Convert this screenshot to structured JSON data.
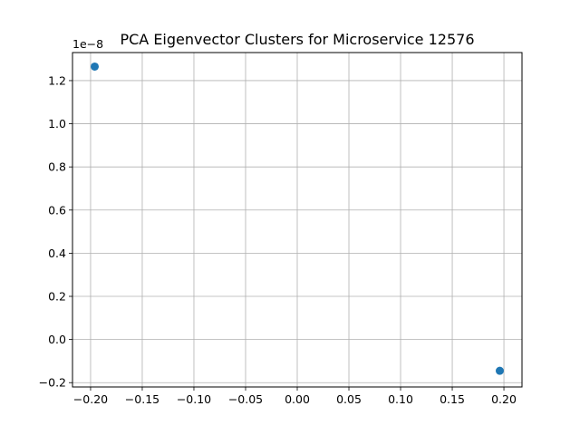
{
  "chart_data": {
    "type": "scatter",
    "title": "PCA Eigenvector Clusters for Microservice 12576",
    "xlabel": "",
    "ylabel": "",
    "y_offset_label": "1e−8",
    "xlim": [
      -0.2175,
      0.2175
    ],
    "ylim": [
      -0.22,
      1.33
    ],
    "x_ticks": [
      -0.2,
      -0.15,
      -0.1,
      -0.05,
      0.0,
      0.05,
      0.1,
      0.15,
      0.2
    ],
    "x_tick_labels": [
      "−0.20",
      "−0.15",
      "−0.10",
      "−0.05",
      "0.00",
      "0.05",
      "0.10",
      "0.15",
      "0.20"
    ],
    "y_ticks": [
      -0.2,
      0.0,
      0.2,
      0.4,
      0.6,
      0.8,
      1.0,
      1.2
    ],
    "y_tick_labels": [
      "−0.2",
      "0.0",
      "0.2",
      "0.4",
      "0.6",
      "0.8",
      "1.0",
      "1.2"
    ],
    "grid": true,
    "series": [
      {
        "color": "#1f77b4",
        "points": [
          {
            "x": -0.196,
            "y": 1.265
          },
          {
            "x": 0.196,
            "y": -0.145
          }
        ]
      }
    ]
  }
}
